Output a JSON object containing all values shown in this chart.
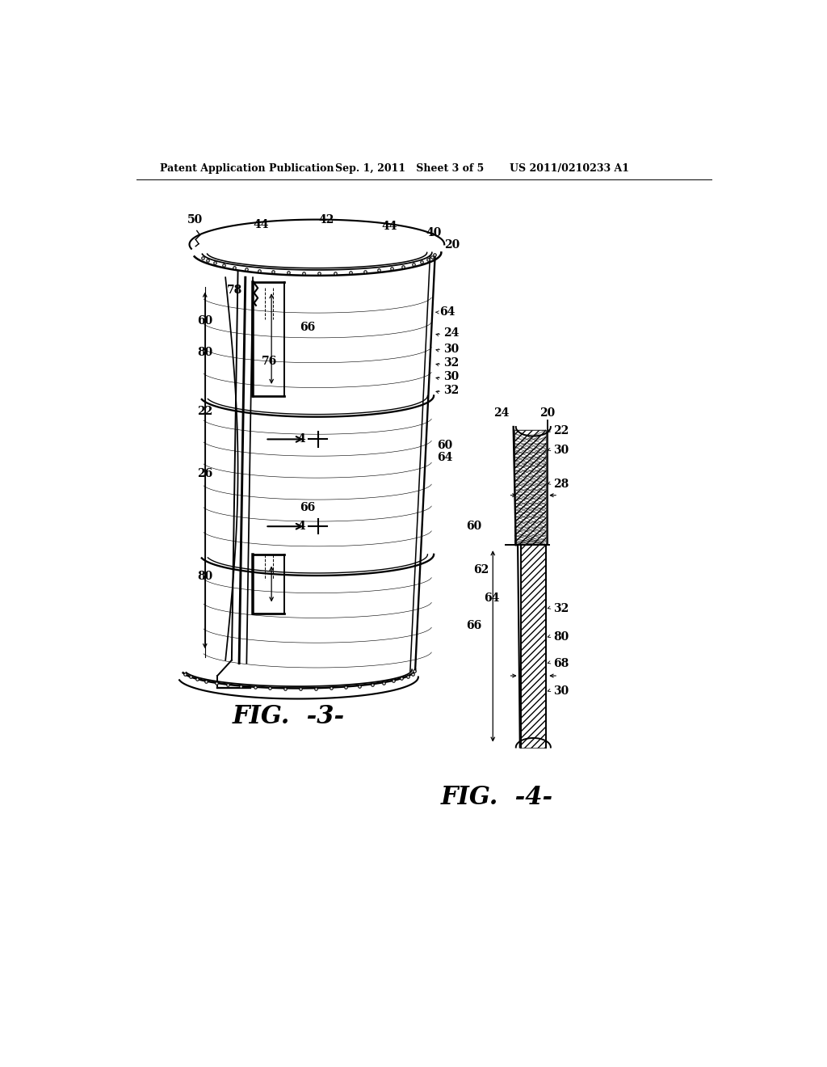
{
  "background_color": "#ffffff",
  "header_left": "Patent Application Publication",
  "header_center": "Sep. 1, 2011   Sheet 3 of 5",
  "header_right": "US 2011/0210233 A1",
  "fig3_label": "FIG.  -3-",
  "fig4_label": "FIG.  -4-",
  "line_color": "#000000",
  "lw": 1.4,
  "tlw": 0.7,
  "font_size_header": 9,
  "font_size_ref": 10,
  "font_size_fig": 16
}
